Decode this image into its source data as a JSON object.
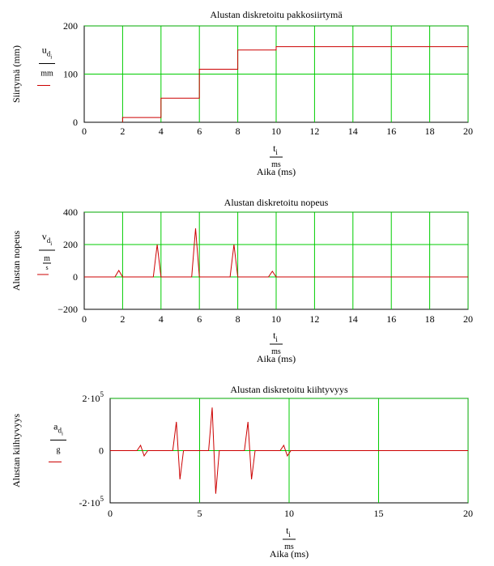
{
  "chart_data": [
    {
      "type": "line",
      "title": "Alustan diskretoitu pakkosiirtymä",
      "ylabel": "Siirtymä (mm)",
      "ylabel_expr": {
        "var": "u",
        "sub": "d",
        "subsub": "i",
        "unit": "mm"
      },
      "xlabel_expr": {
        "var": "t",
        "sub": "i",
        "unit": "ms"
      },
      "xlabel": "Aika (ms)",
      "xlim": [
        0,
        20
      ],
      "ylim": [
        0,
        200
      ],
      "xticks": [
        "0",
        "2",
        "4",
        "6",
        "8",
        "10",
        "12",
        "14",
        "16",
        "18",
        "20"
      ],
      "yticks": [
        "0",
        "100",
        "200"
      ],
      "grid": true,
      "series": [
        {
          "color": "#cc0000",
          "x": [
            2,
            2,
            4,
            4,
            6,
            6,
            8,
            8,
            10,
            10,
            20
          ],
          "y": [
            0,
            10,
            10,
            50,
            50,
            110,
            110,
            150,
            150,
            157,
            157
          ]
        }
      ]
    },
    {
      "type": "line",
      "title": "Alustan diskretoitu nopeus",
      "ylabel": "Alustan nopeus",
      "ylabel_expr": {
        "var": "v",
        "sub": "d",
        "subsub": "i",
        "unit_num": "m",
        "unit_den": "s"
      },
      "xlabel_expr": {
        "var": "t",
        "sub": "i",
        "unit": "ms"
      },
      "xlabel": "Aika (ms)",
      "xlim": [
        0,
        20
      ],
      "ylim": [
        -200,
        400
      ],
      "xticks": [
        "0",
        "2",
        "4",
        "6",
        "8",
        "10",
        "12",
        "14",
        "16",
        "18",
        "20"
      ],
      "yticks": [
        "-200",
        "0",
        "200",
        "400"
      ],
      "grid": true,
      "series": [
        {
          "color": "#cc0000",
          "x": [
            0,
            1.6,
            1.8,
            2.0,
            3.6,
            3.8,
            4.0,
            5.6,
            5.8,
            6.0,
            7.6,
            7.8,
            8.0,
            9.6,
            9.8,
            10.0,
            20
          ],
          "y": [
            0,
            0,
            40,
            0,
            0,
            200,
            0,
            0,
            300,
            0,
            0,
            200,
            0,
            0,
            35,
            0,
            0
          ]
        }
      ]
    },
    {
      "type": "line",
      "title": "Alustan diskretoitu kiihtyvyys",
      "ylabel": "Alustan kiihtyvyys",
      "ylabel_expr": {
        "var": "a",
        "sub": "d",
        "subsub": "i",
        "unit": "g"
      },
      "xlabel_expr": {
        "var": "t",
        "sub": "i",
        "unit": "ms"
      },
      "xlabel": "Aika (ms)",
      "xlim": [
        0,
        20
      ],
      "ylim": [
        -200000,
        200000
      ],
      "xticks": [
        "0",
        "5",
        "10",
        "15",
        "20"
      ],
      "yticks": [
        "-2·10^5",
        "0",
        "2·10^5"
      ],
      "grid": true,
      "series": [
        {
          "color": "#cc0000",
          "x": [
            0,
            1.5,
            1.7,
            1.9,
            2.1,
            3.5,
            3.7,
            3.9,
            4.1,
            5.5,
            5.7,
            5.9,
            6.1,
            7.5,
            7.7,
            7.9,
            8.1,
            9.5,
            9.7,
            9.9,
            10.1,
            20
          ],
          "y": [
            0,
            0,
            20000,
            -20000,
            0,
            0,
            110000,
            -110000,
            0,
            0,
            165000,
            -165000,
            0,
            0,
            110000,
            -110000,
            0,
            0,
            20000,
            -20000,
            0,
            0
          ]
        }
      ]
    }
  ]
}
